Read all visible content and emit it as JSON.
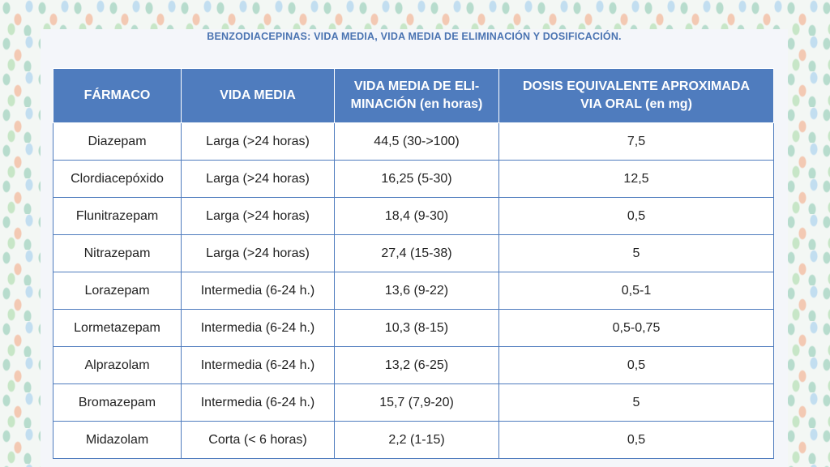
{
  "caption": "BENZODIACEPINAS: VIDA MEDIA, VIDA MEDIA DE ELIMINACIÓN Y DOSIFICACIÓN.",
  "headers": {
    "col1": "FÁRMACO",
    "col2": "VIDA MEDIA",
    "col3_line1": "VIDA MEDIA DE ELI-",
    "col3_line2": "MINACIÓN (en horas)",
    "col4_line1": "DOSIS EQUIVALENTE APROXIMADA",
    "col4_line2": "VIA ORAL  (en mg)"
  },
  "rows": [
    {
      "farmaco": "Diazepam",
      "vida_media": "Larga (>24 horas)",
      "eliminacion": "44,5 (30->100)",
      "dosis": "7,5"
    },
    {
      "farmaco": "Clordiacepóxido",
      "vida_media": "Larga (>24 horas)",
      "eliminacion": "16,25 (5-30)",
      "dosis": "12,5"
    },
    {
      "farmaco": "Flunitrazepam",
      "vida_media": "Larga (>24 horas)",
      "eliminacion": "18,4 (9-30)",
      "dosis": "0,5"
    },
    {
      "farmaco": "Nitrazepam",
      "vida_media": "Larga (>24 horas)",
      "eliminacion": "27,4 (15-38)",
      "dosis": "5"
    },
    {
      "farmaco": "Lorazepam",
      "vida_media": "Intermedia (6-24 h.)",
      "eliminacion": "13,6 (9-22)",
      "dosis": "0,5-1"
    },
    {
      "farmaco": "Lormetazepam",
      "vida_media": "Intermedia (6-24 h.)",
      "eliminacion": "10,3 (8-15)",
      "dosis": "0,5-0,75"
    },
    {
      "farmaco": "Alprazolam",
      "vida_media": "Intermedia (6-24 h.)",
      "eliminacion": "13,2 (6-25)",
      "dosis": "0,5"
    },
    {
      "farmaco": "Bromazepam",
      "vida_media": "Intermedia (6-24 h.)",
      "eliminacion": "15,7 (7,9-20)",
      "dosis": "5"
    },
    {
      "farmaco": "Midazolam",
      "vida_media": "Corta (< 6 horas)",
      "eliminacion": "2,2 (1-15)",
      "dosis": "0,5"
    }
  ],
  "colors": {
    "header_bg": "#4f7cbe",
    "caption": "#4b74b2",
    "grid": "#4f7cbe"
  }
}
